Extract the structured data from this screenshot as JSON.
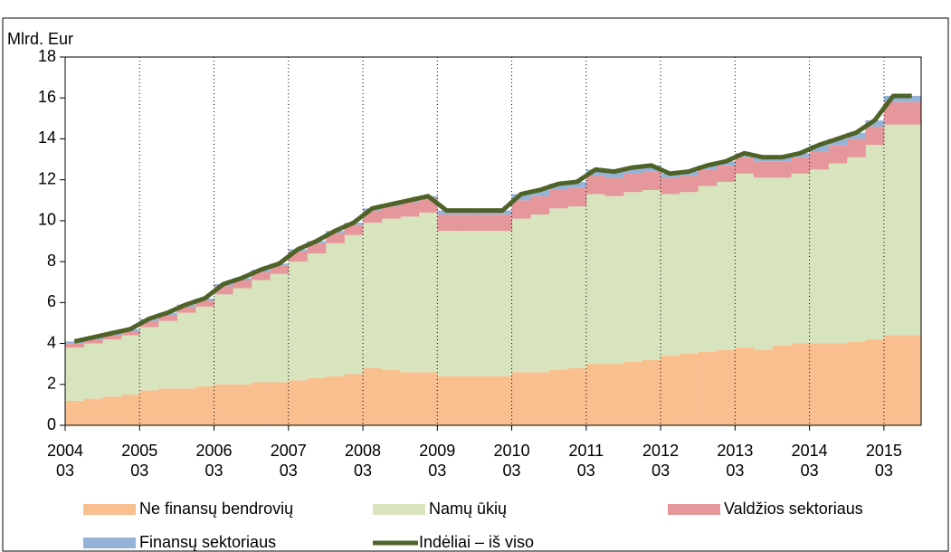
{
  "chart_data": {
    "type": "bar",
    "stacked": true,
    "y_label": "Mlrd. Eur",
    "categories": [
      "2004\n03",
      null,
      null,
      null,
      "2005\n03",
      null,
      null,
      null,
      "2006\n03",
      null,
      null,
      null,
      "2007\n03",
      null,
      null,
      null,
      "2008\n03",
      null,
      null,
      null,
      "2009\n03",
      null,
      null,
      null,
      "2010\n03",
      null,
      null,
      null,
      "2011\n03",
      null,
      null,
      null,
      "2012\n03",
      null,
      null,
      null,
      "2013\n03",
      null,
      null,
      null,
      "2014\n03",
      null,
      null,
      null,
      "2015\n03",
      null
    ],
    "series": [
      {
        "name": "Ne finansų bendrovių",
        "type": "bar",
        "color": "#f9bf8f",
        "values": [
          1.2,
          1.3,
          1.4,
          1.5,
          1.7,
          1.8,
          1.8,
          1.9,
          2.0,
          2.0,
          2.1,
          2.1,
          2.2,
          2.3,
          2.4,
          2.5,
          2.8,
          2.7,
          2.6,
          2.6,
          2.4,
          2.4,
          2.4,
          2.4,
          2.6,
          2.6,
          2.7,
          2.8,
          3.0,
          3.0,
          3.1,
          3.2,
          3.4,
          3.5,
          3.6,
          3.7,
          3.8,
          3.7,
          3.9,
          4.0,
          4.0,
          4.0,
          4.1,
          4.2,
          4.4,
          4.4
        ]
      },
      {
        "name": "Namų ūkių",
        "type": "bar",
        "color": "#d7e4bd",
        "values": [
          2.6,
          2.7,
          2.8,
          2.9,
          3.1,
          3.3,
          3.7,
          3.9,
          4.4,
          4.7,
          5.0,
          5.3,
          5.8,
          6.1,
          6.5,
          6.8,
          7.1,
          7.4,
          7.6,
          7.8,
          7.1,
          7.1,
          7.1,
          7.1,
          7.5,
          7.7,
          7.9,
          7.9,
          8.3,
          8.2,
          8.3,
          8.3,
          7.9,
          7.9,
          8.1,
          8.2,
          8.5,
          8.4,
          8.2,
          8.3,
          8.5,
          8.8,
          9.0,
          9.5,
          10.3,
          10.3
        ]
      },
      {
        "name": "Valdžios sektoriaus",
        "type": "bar",
        "color": "#e6979b",
        "values": [
          0.2,
          0.2,
          0.2,
          0.2,
          0.3,
          0.3,
          0.3,
          0.3,
          0.4,
          0.4,
          0.4,
          0.4,
          0.5,
          0.5,
          0.5,
          0.5,
          0.6,
          0.6,
          0.7,
          0.7,
          0.8,
          0.8,
          0.8,
          0.8,
          0.9,
          0.9,
          0.9,
          0.9,
          0.9,
          0.9,
          0.9,
          0.9,
          0.8,
          0.8,
          0.8,
          0.8,
          0.8,
          0.8,
          0.8,
          0.8,
          0.9,
          0.9,
          0.9,
          0.9,
          1.1,
          1.1
        ]
      },
      {
        "name": "Finansų sektoriaus",
        "type": "bar",
        "color": "#95b3d7",
        "values": [
          0.1,
          0.1,
          0.1,
          0.1,
          0.1,
          0.1,
          0.1,
          0.1,
          0.1,
          0.1,
          0.1,
          0.1,
          0.1,
          0.1,
          0.1,
          0.1,
          0.1,
          0.1,
          0.1,
          0.1,
          0.2,
          0.2,
          0.2,
          0.2,
          0.3,
          0.3,
          0.3,
          0.3,
          0.3,
          0.3,
          0.3,
          0.3,
          0.2,
          0.2,
          0.2,
          0.2,
          0.2,
          0.2,
          0.2,
          0.2,
          0.3,
          0.3,
          0.3,
          0.3,
          0.3,
          0.3
        ]
      },
      {
        "name": "Indėliai – iš viso",
        "type": "line",
        "color": "#4f6228",
        "values": [
          4.1,
          4.3,
          4.5,
          4.7,
          5.2,
          5.5,
          5.9,
          6.2,
          6.9,
          7.2,
          7.6,
          7.9,
          8.6,
          9.0,
          9.5,
          9.9,
          10.6,
          10.8,
          11.0,
          11.2,
          10.5,
          10.5,
          10.5,
          10.5,
          11.3,
          11.5,
          11.8,
          11.9,
          12.5,
          12.4,
          12.6,
          12.7,
          12.3,
          12.4,
          12.7,
          12.9,
          13.3,
          13.1,
          13.1,
          13.3,
          13.7,
          14.0,
          14.3,
          14.9,
          16.1,
          16.1
        ]
      }
    ],
    "ylim": [
      0,
      18
    ],
    "yticks": [
      0,
      2,
      4,
      6,
      8,
      10,
      12,
      14,
      16,
      18
    ],
    "grid_x": true
  }
}
